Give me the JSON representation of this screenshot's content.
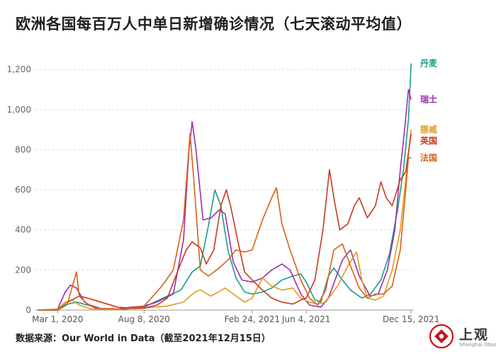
{
  "chart_data": {
    "type": "line",
    "title": "欧洲各国每百万人中单日新增确诊情况（七天滚动平均值）",
    "source": "数据来源：Our World in Data（截至2021年12月15日）",
    "ylim": [
      0,
      1250
    ],
    "yticks": [
      0,
      200,
      400,
      600,
      800,
      1000,
      1200
    ],
    "ytick_labels": [
      "0",
      "200",
      "400",
      "600",
      "800",
      "1,000",
      "1,200"
    ],
    "xlim": [
      "2020-01-20",
      "2021-12-20"
    ],
    "xticks": [
      {
        "date": "2020-03-01",
        "label": "Mar 1, 2020"
      },
      {
        "date": "2020-08-08",
        "label": "Aug 8, 2020"
      },
      {
        "date": "2021-02-24",
        "label": "Feb 24, 2021"
      },
      {
        "date": "2021-06-04",
        "label": "Jun 4, 2021"
      },
      {
        "date": "2021-12-15",
        "label": "Dec 15, 2021"
      }
    ],
    "grid": true,
    "series": [
      {
        "name": "丹麦",
        "color": "#1a9a8a",
        "points": [
          [
            "2020-01-25",
            0
          ],
          [
            "2020-03-01",
            0
          ],
          [
            "2020-03-20",
            30
          ],
          [
            "2020-04-05",
            40
          ],
          [
            "2020-04-25",
            25
          ],
          [
            "2020-05-20",
            8
          ],
          [
            "2020-07-01",
            3
          ],
          [
            "2020-08-08",
            15
          ],
          [
            "2020-09-20",
            70
          ],
          [
            "2020-10-15",
            100
          ],
          [
            "2020-11-05",
            190
          ],
          [
            "2020-11-20",
            220
          ],
          [
            "2020-12-05",
            420
          ],
          [
            "2020-12-17",
            600
          ],
          [
            "2020-12-28",
            520
          ],
          [
            "2021-01-10",
            300
          ],
          [
            "2021-01-25",
            160
          ],
          [
            "2021-02-10",
            90
          ],
          [
            "2021-02-24",
            80
          ],
          [
            "2021-03-15",
            90
          ],
          [
            "2021-04-01",
            110
          ],
          [
            "2021-04-20",
            150
          ],
          [
            "2021-05-10",
            170
          ],
          [
            "2021-05-25",
            180
          ],
          [
            "2021-06-04",
            140
          ],
          [
            "2021-06-20",
            50
          ],
          [
            "2021-07-01",
            40
          ],
          [
            "2021-07-15",
            170
          ],
          [
            "2021-07-25",
            210
          ],
          [
            "2021-08-10",
            150
          ],
          [
            "2021-08-25",
            100
          ],
          [
            "2021-09-15",
            60
          ],
          [
            "2021-10-01",
            80
          ],
          [
            "2021-10-20",
            150
          ],
          [
            "2021-11-05",
            280
          ],
          [
            "2021-11-20",
            500
          ],
          [
            "2021-12-01",
            700
          ],
          [
            "2021-12-10",
            950
          ],
          [
            "2021-12-15",
            1230
          ]
        ]
      },
      {
        "name": "瑞士",
        "color": "#9b2dab",
        "points": [
          [
            "2020-01-25",
            0
          ],
          [
            "2020-03-01",
            5
          ],
          [
            "2020-03-15",
            90
          ],
          [
            "2020-03-25",
            125
          ],
          [
            "2020-04-05",
            110
          ],
          [
            "2020-04-20",
            40
          ],
          [
            "2020-05-10",
            10
          ],
          [
            "2020-06-15",
            3
          ],
          [
            "2020-07-15",
            15
          ],
          [
            "2020-08-08",
            20
          ],
          [
            "2020-09-01",
            40
          ],
          [
            "2020-10-01",
            80
          ],
          [
            "2020-10-20",
            350
          ],
          [
            "2020-10-30",
            800
          ],
          [
            "2020-11-05",
            940
          ],
          [
            "2020-11-12",
            800
          ],
          [
            "2020-11-25",
            450
          ],
          [
            "2020-12-10",
            460
          ],
          [
            "2020-12-25",
            500
          ],
          [
            "2021-01-05",
            480
          ],
          [
            "2021-01-20",
            240
          ],
          [
            "2021-02-05",
            150
          ],
          [
            "2021-02-24",
            140
          ],
          [
            "2021-03-15",
            160
          ],
          [
            "2021-04-01",
            200
          ],
          [
            "2021-04-20",
            230
          ],
          [
            "2021-05-05",
            200
          ],
          [
            "2021-05-25",
            80
          ],
          [
            "2021-06-10",
            25
          ],
          [
            "2021-07-01",
            15
          ],
          [
            "2021-07-15",
            60
          ],
          [
            "2021-08-10",
            250
          ],
          [
            "2021-08-25",
            300
          ],
          [
            "2021-09-10",
            170
          ],
          [
            "2021-09-30",
            70
          ],
          [
            "2021-10-15",
            80
          ],
          [
            "2021-11-01",
            200
          ],
          [
            "2021-11-15",
            400
          ],
          [
            "2021-11-25",
            700
          ],
          [
            "2021-12-03",
            900
          ],
          [
            "2021-12-10",
            1100
          ],
          [
            "2021-12-15",
            1050
          ]
        ]
      },
      {
        "name": "挪威",
        "color": "#e39a1f",
        "points": [
          [
            "2020-01-25",
            0
          ],
          [
            "2020-03-01",
            5
          ],
          [
            "2020-03-15",
            40
          ],
          [
            "2020-03-28",
            50
          ],
          [
            "2020-04-10",
            25
          ],
          [
            "2020-05-01",
            6
          ],
          [
            "2020-06-15",
            2
          ],
          [
            "2020-08-08",
            10
          ],
          [
            "2020-09-20",
            20
          ],
          [
            "2020-10-20",
            40
          ],
          [
            "2020-11-10",
            90
          ],
          [
            "2020-11-20",
            100
          ],
          [
            "2020-12-10",
            70
          ],
          [
            "2021-01-05",
            110
          ],
          [
            "2021-01-20",
            80
          ],
          [
            "2021-02-10",
            40
          ],
          [
            "2021-02-24",
            60
          ],
          [
            "2021-03-15",
            160
          ],
          [
            "2021-04-01",
            120
          ],
          [
            "2021-04-20",
            100
          ],
          [
            "2021-05-10",
            110
          ],
          [
            "2021-05-25",
            60
          ],
          [
            "2021-06-10",
            40
          ],
          [
            "2021-06-25",
            30
          ],
          [
            "2021-07-10",
            40
          ],
          [
            "2021-08-01",
            120
          ],
          [
            "2021-08-20",
            220
          ],
          [
            "2021-09-05",
            290
          ],
          [
            "2021-09-15",
            150
          ],
          [
            "2021-09-25",
            60
          ],
          [
            "2021-10-10",
            50
          ],
          [
            "2021-10-25",
            70
          ],
          [
            "2021-11-10",
            200
          ],
          [
            "2021-11-25",
            400
          ],
          [
            "2021-12-05",
            650
          ],
          [
            "2021-12-15",
            900
          ]
        ]
      },
      {
        "name": "英国",
        "color": "#c63a1e",
        "points": [
          [
            "2020-01-25",
            0
          ],
          [
            "2020-03-01",
            0
          ],
          [
            "2020-03-20",
            40
          ],
          [
            "2020-04-10",
            70
          ],
          [
            "2020-04-25",
            60
          ],
          [
            "2020-05-20",
            40
          ],
          [
            "2020-06-20",
            15
          ],
          [
            "2020-07-20",
            8
          ],
          [
            "2020-08-08",
            10
          ],
          [
            "2020-09-01",
            25
          ],
          [
            "2020-09-20",
            60
          ],
          [
            "2020-10-10",
            200
          ],
          [
            "2020-10-25",
            300
          ],
          [
            "2020-11-05",
            340
          ],
          [
            "2020-11-20",
            310
          ],
          [
            "2020-12-01",
            230
          ],
          [
            "2020-12-15",
            300
          ],
          [
            "2020-12-28",
            520
          ],
          [
            "2021-01-07",
            600
          ],
          [
            "2021-01-15",
            520
          ],
          [
            "2021-01-28",
            350
          ],
          [
            "2021-02-10",
            190
          ],
          [
            "2021-02-24",
            150
          ],
          [
            "2021-03-15",
            100
          ],
          [
            "2021-04-01",
            60
          ],
          [
            "2021-04-20",
            40
          ],
          [
            "2021-05-10",
            30
          ],
          [
            "2021-05-25",
            50
          ],
          [
            "2021-06-04",
            60
          ],
          [
            "2021-06-20",
            150
          ],
          [
            "2021-07-05",
            400
          ],
          [
            "2021-07-17",
            700
          ],
          [
            "2021-07-25",
            560
          ],
          [
            "2021-08-05",
            400
          ],
          [
            "2021-08-20",
            430
          ],
          [
            "2021-09-01",
            520
          ],
          [
            "2021-09-10",
            560
          ],
          [
            "2021-09-25",
            460
          ],
          [
            "2021-10-10",
            520
          ],
          [
            "2021-10-20",
            640
          ],
          [
            "2021-10-30",
            560
          ],
          [
            "2021-11-10",
            520
          ],
          [
            "2021-11-25",
            650
          ],
          [
            "2021-12-05",
            690
          ],
          [
            "2021-12-15",
            880
          ]
        ]
      },
      {
        "name": "法国",
        "color": "#d95f14",
        "points": [
          [
            "2020-01-25",
            0
          ],
          [
            "2020-03-01",
            2
          ],
          [
            "2020-03-20",
            40
          ],
          [
            "2020-04-05",
            190
          ],
          [
            "2020-04-10",
            70
          ],
          [
            "2020-04-25",
            30
          ],
          [
            "2020-05-20",
            8
          ],
          [
            "2020-07-01",
            5
          ],
          [
            "2020-08-08",
            20
          ],
          [
            "2020-09-10",
            120
          ],
          [
            "2020-10-01",
            200
          ],
          [
            "2020-10-20",
            450
          ],
          [
            "2020-11-01",
            880
          ],
          [
            "2020-11-08",
            650
          ],
          [
            "2020-11-20",
            200
          ],
          [
            "2020-12-05",
            170
          ],
          [
            "2020-12-25",
            210
          ],
          [
            "2021-01-10",
            250
          ],
          [
            "2021-01-25",
            300
          ],
          [
            "2021-02-10",
            290
          ],
          [
            "2021-02-24",
            300
          ],
          [
            "2021-03-15",
            450
          ],
          [
            "2021-04-01",
            560
          ],
          [
            "2021-04-10",
            610
          ],
          [
            "2021-04-20",
            430
          ],
          [
            "2021-05-05",
            300
          ],
          [
            "2021-05-25",
            150
          ],
          [
            "2021-06-10",
            60
          ],
          [
            "2021-06-25",
            25
          ],
          [
            "2021-07-10",
            100
          ],
          [
            "2021-07-25",
            300
          ],
          [
            "2021-08-10",
            330
          ],
          [
            "2021-08-25",
            220
          ],
          [
            "2021-09-10",
            110
          ],
          [
            "2021-09-25",
            60
          ],
          [
            "2021-10-10",
            80
          ],
          [
            "2021-10-25",
            80
          ],
          [
            "2021-11-10",
            120
          ],
          [
            "2021-11-25",
            300
          ],
          [
            "2021-12-05",
            600
          ],
          [
            "2021-12-10",
            760
          ],
          [
            "2021-12-15",
            760
          ]
        ]
      }
    ]
  },
  "logo": {
    "text": "上观",
    "subtitle": "Shanghai Observer"
  }
}
